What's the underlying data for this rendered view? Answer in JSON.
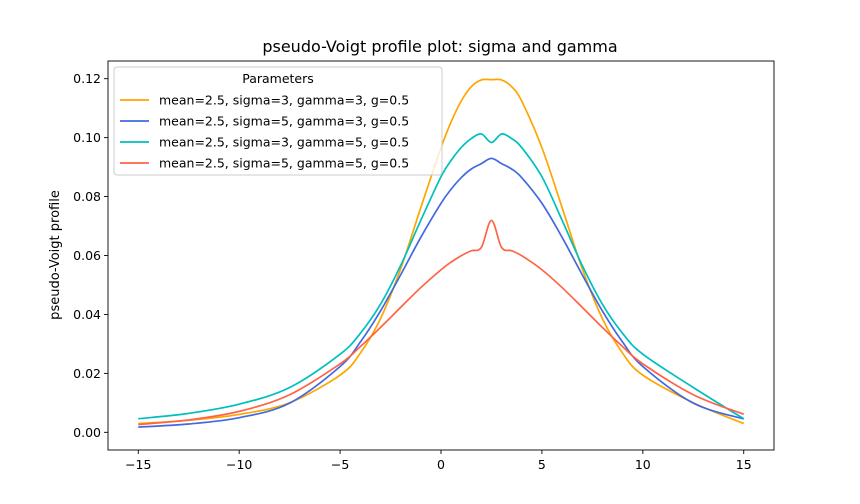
{
  "chart_data": {
    "type": "line",
    "title": "pseudo-Voigt profile plot: sigma and gamma",
    "xlabel": "",
    "ylabel": "pseudo-Voigt profile",
    "xlim": [
      -16.5,
      16.5
    ],
    "ylim": [
      -0.006,
      0.126
    ],
    "xticks": [
      -15,
      -10,
      -5,
      0,
      5,
      10,
      15
    ],
    "xtick_labels": [
      "−15",
      "−10",
      "−5",
      "0",
      "5",
      "10",
      "15"
    ],
    "yticks": [
      0.0,
      0.02,
      0.04,
      0.06,
      0.08,
      0.1,
      0.12
    ],
    "ytick_labels": [
      "0.00",
      "0.02",
      "0.04",
      "0.06",
      "0.08",
      "0.10",
      "0.12"
    ],
    "grid": false,
    "legend": {
      "title": "Parameters",
      "placement": "top-left"
    },
    "x": [
      -15,
      -12.5,
      -10,
      -7.5,
      -5,
      -4,
      -3,
      -2,
      -1,
      0,
      0.5,
      1,
      1.5,
      2,
      2.5,
      3,
      3.5,
      4,
      5,
      6,
      7,
      8,
      9,
      10,
      12.5,
      15
    ],
    "series": [
      {
        "name": "mean=2.5, sigma=3, gamma=3, g=0.5",
        "color": "#ffa500",
        "values": [
          0.00297,
          0.0041,
          0.00608,
          0.01004,
          0.01941,
          0.02685,
          0.03854,
          0.05547,
          0.07627,
          0.09656,
          0.10531,
          0.11239,
          0.11729,
          0.11959,
          0.11965,
          0.11959,
          0.11729,
          0.11239,
          0.09656,
          0.07627,
          0.05547,
          0.03854,
          0.02685,
          0.01941,
          0.01004,
          0.00297
        ]
      },
      {
        "name": "mean=2.5, sigma=5, gamma=3, g=0.5",
        "color": "#4169e1",
        "values": [
          0.00177,
          0.00282,
          0.00496,
          0.00991,
          0.02234,
          0.0306,
          0.04114,
          0.05342,
          0.06617,
          0.07772,
          0.08247,
          0.08641,
          0.08935,
          0.09117,
          0.09296,
          0.09117,
          0.08935,
          0.08641,
          0.07772,
          0.06617,
          0.05342,
          0.04114,
          0.0306,
          0.02234,
          0.00991,
          0.00453
        ]
      },
      {
        "name": "mean=2.5, sigma=3, gamma=5, g=0.5",
        "color": "#00bfbf",
        "values": [
          0.0046,
          0.00643,
          0.00954,
          0.01521,
          0.02651,
          0.03356,
          0.04342,
          0.05659,
          0.07195,
          0.08672,
          0.09223,
          0.09663,
          0.09968,
          0.10124,
          0.09834,
          0.10124,
          0.09968,
          0.09663,
          0.08672,
          0.07195,
          0.05659,
          0.04342,
          0.03356,
          0.02651,
          0.01521,
          0.0046
        ]
      },
      {
        "name": "mean=2.5, sigma=5, gamma=5, g=0.5",
        "color": "#ff6347",
        "values": [
          0.00264,
          0.0042,
          0.00711,
          0.01276,
          0.02323,
          0.02907,
          0.03556,
          0.0424,
          0.04912,
          0.05517,
          0.05775,
          0.05993,
          0.06162,
          0.06275,
          0.0719,
          0.06275,
          0.06162,
          0.05993,
          0.05517,
          0.04912,
          0.0424,
          0.03556,
          0.02907,
          0.02323,
          0.01276,
          0.00611
        ]
      }
    ]
  }
}
